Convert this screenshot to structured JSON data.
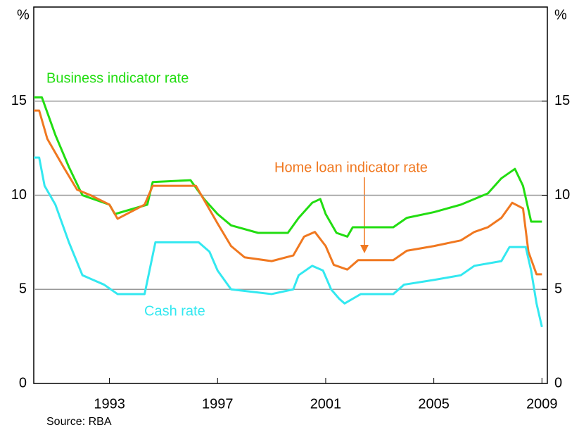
{
  "chart_data": {
    "type": "line",
    "y_unit_left": "%",
    "y_unit_right": "%",
    "source": "Source: RBA",
    "xlim": [
      1990.2,
      2009.2
    ],
    "xticks": [
      1993,
      1997,
      2001,
      2005,
      2009
    ],
    "ylim": [
      0,
      20
    ],
    "yticks": [
      0,
      5,
      10,
      15
    ],
    "y2lim": [
      0,
      20
    ],
    "y2ticks": [
      0,
      5,
      10,
      15
    ],
    "grid": true,
    "series": [
      {
        "name": "Business indicator rate",
        "color": "#22dd11",
        "x": [
          1990.2,
          1990.5,
          1991,
          1991.5,
          1992,
          1993,
          1993.2,
          1994.4,
          1994.6,
          1996,
          1996.5,
          1997,
          1997.5,
          1998.5,
          1999.6,
          2000,
          2000.5,
          2000.8,
          2001,
          2001.4,
          2001.8,
          2002,
          2003.5,
          2004,
          2005,
          2006,
          2006.5,
          2007,
          2007.5,
          2008,
          2008.3,
          2008.6,
          2009
        ],
        "values": [
          15.2,
          15.2,
          13.2,
          11.5,
          10.0,
          9.5,
          9.0,
          9.5,
          10.7,
          10.8,
          9.8,
          9.0,
          8.4,
          8.0,
          8.0,
          8.8,
          9.6,
          9.8,
          9.0,
          8.0,
          7.8,
          8.3,
          8.3,
          8.8,
          9.1,
          9.5,
          9.8,
          10.1,
          10.9,
          11.4,
          10.5,
          8.6,
          8.6
        ]
      },
      {
        "name": "Home loan indicator rate",
        "color": "#f07820",
        "x": [
          1990.2,
          1990.4,
          1990.7,
          1991.3,
          1991.8,
          1992.3,
          1993,
          1993.3,
          1994.3,
          1994.6,
          1996.2,
          1996.6,
          1997,
          1997.5,
          1998,
          1999,
          1999.8,
          2000.2,
          2000.6,
          2001,
          2001.3,
          2001.8,
          2002.2,
          2003.5,
          2004,
          2005,
          2006,
          2006.5,
          2007,
          2007.5,
          2007.9,
          2008.3,
          2008.5,
          2008.8,
          2009
        ],
        "values": [
          14.5,
          14.5,
          13.0,
          11.5,
          10.3,
          10.0,
          9.5,
          8.75,
          9.5,
          10.5,
          10.5,
          9.5,
          8.5,
          7.3,
          6.7,
          6.5,
          6.8,
          7.8,
          8.05,
          7.3,
          6.3,
          6.05,
          6.55,
          6.55,
          7.05,
          7.3,
          7.6,
          8.05,
          8.3,
          8.8,
          9.6,
          9.3,
          7.0,
          5.8,
          5.8
        ]
      },
      {
        "name": "Cash rate",
        "color": "#33e8f0",
        "x": [
          1990.2,
          1990.4,
          1990.6,
          1991,
          1991.5,
          1992,
          1992.8,
          1993.3,
          1994.3,
          1994.7,
          1996.3,
          1996.7,
          1997,
          1997.5,
          1999,
          1999.8,
          2000,
          2000.5,
          2000.9,
          2001.2,
          2001.5,
          2001.7,
          2002.3,
          2003.5,
          2003.9,
          2005,
          2006,
          2006.5,
          2007.5,
          2007.8,
          2008.4,
          2008.6,
          2008.8,
          2009
        ],
        "values": [
          12.0,
          12.0,
          10.5,
          9.5,
          7.5,
          5.75,
          5.25,
          4.75,
          4.75,
          7.5,
          7.5,
          7.0,
          6.0,
          5.0,
          4.75,
          5.0,
          5.75,
          6.25,
          6.0,
          5.0,
          4.5,
          4.25,
          4.75,
          4.75,
          5.25,
          5.5,
          5.75,
          6.25,
          6.5,
          7.25,
          7.25,
          6.0,
          4.25,
          3.0
        ]
      }
    ]
  }
}
